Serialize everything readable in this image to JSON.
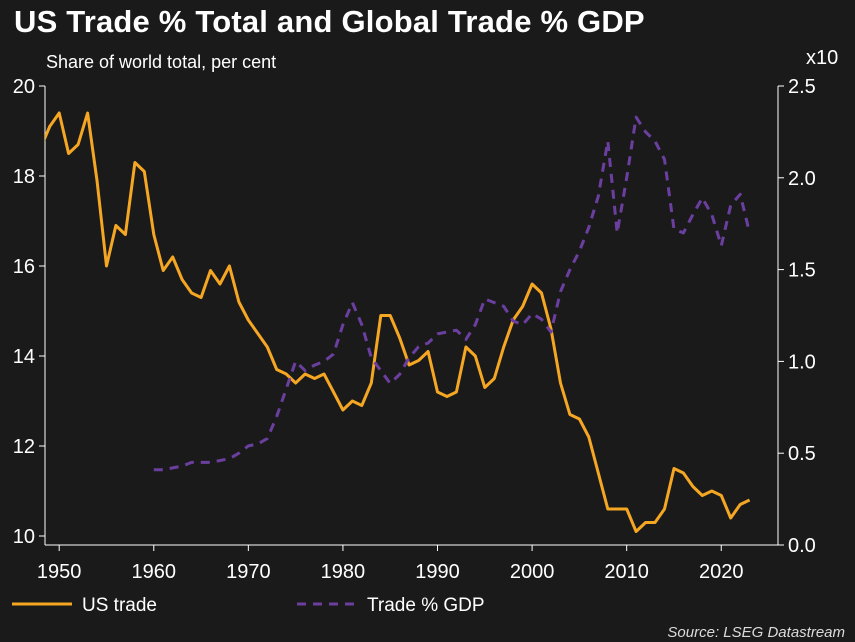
{
  "title": "US Trade % Total and Global Trade % GDP",
  "subtitle": "Share of world total, per cent",
  "right_axis_multiplier": "x10",
  "source": "Source: LSEG Datastream",
  "colors": {
    "background": "#1a1a1a",
    "us_trade": "#f5a623",
    "trade_gdp": "#6b3fa0",
    "text": "#ffffff"
  },
  "chart_data": {
    "type": "line",
    "title": "US Trade % Total and Global Trade % GDP",
    "subtitle": "Share of world total, per cent",
    "grid": false,
    "legend_position": "bottom",
    "x_ticks": [
      "1950",
      "1960",
      "1970",
      "1980",
      "1990",
      "2000",
      "2010",
      "2020"
    ],
    "xlim": [
      1948.5,
      2026
    ],
    "y_left": {
      "lim": [
        9.8,
        20
      ],
      "ticks": [
        "10",
        "12",
        "14",
        "16",
        "18",
        "20"
      ]
    },
    "y_right": {
      "lim": [
        0,
        2.5
      ],
      "ticks": [
        "0.0",
        "0.5",
        "1.0",
        "1.5",
        "2.0",
        "2.5"
      ],
      "multiplier": "x10"
    },
    "series": [
      {
        "name": "US trade",
        "axis": "left",
        "style": "solid",
        "x": [
          1948,
          1949,
          1950,
          1951,
          1952,
          1953,
          1954,
          1955,
          1956,
          1957,
          1958,
          1959,
          1960,
          1961,
          1962,
          1963,
          1964,
          1965,
          1966,
          1967,
          1968,
          1969,
          1970,
          1971,
          1972,
          1973,
          1974,
          1975,
          1976,
          1977,
          1978,
          1979,
          1980,
          1981,
          1982,
          1983,
          1984,
          1985,
          1986,
          1987,
          1988,
          1989,
          1990,
          1991,
          1992,
          1993,
          1994,
          1995,
          1996,
          1997,
          1998,
          1999,
          2000,
          2001,
          2002,
          2003,
          2004,
          2005,
          2006,
          2007,
          2008,
          2009,
          2010,
          2011,
          2012,
          2013,
          2014,
          2015,
          2016,
          2017,
          2018,
          2019,
          2020,
          2021,
          2022,
          2023
        ],
        "values": [
          18.6,
          19.1,
          19.4,
          18.5,
          18.7,
          19.4,
          17.9,
          16.0,
          16.9,
          16.7,
          18.3,
          18.1,
          16.7,
          15.9,
          16.2,
          15.7,
          15.4,
          15.3,
          15.9,
          15.6,
          16.0,
          15.2,
          14.8,
          14.5,
          14.2,
          13.7,
          13.6,
          13.4,
          13.6,
          13.5,
          13.6,
          13.2,
          12.8,
          13.0,
          12.9,
          13.4,
          14.9,
          14.9,
          14.4,
          13.8,
          13.9,
          14.1,
          13.2,
          13.1,
          13.2,
          14.2,
          14.0,
          13.3,
          13.5,
          14.2,
          14.8,
          15.1,
          15.6,
          15.4,
          14.6,
          13.4,
          12.7,
          12.6,
          12.2,
          11.4,
          10.6,
          10.6,
          10.6,
          10.1,
          10.3,
          10.3,
          10.6,
          11.5,
          11.4,
          11.1,
          10.9,
          11.0,
          10.9,
          10.4,
          10.7,
          10.8
        ]
      },
      {
        "name": "Trade % GDP",
        "axis": "right",
        "style": "dashed",
        "x": [
          1960,
          1961,
          1962,
          1963,
          1964,
          1965,
          1966,
          1967,
          1968,
          1969,
          1970,
          1971,
          1972,
          1973,
          1974,
          1975,
          1976,
          1977,
          1978,
          1979,
          1980,
          1981,
          1982,
          1983,
          1984,
          1985,
          1986,
          1987,
          1988,
          1989,
          1990,
          1991,
          1992,
          1993,
          1994,
          1995,
          1996,
          1997,
          1998,
          1999,
          2000,
          2001,
          2002,
          2003,
          2004,
          2005,
          2006,
          2007,
          2008,
          2009,
          2010,
          2011,
          2012,
          2013,
          2014,
          2015,
          2016,
          2017,
          2018,
          2019,
          2020,
          2021,
          2022,
          2023
        ],
        "values": [
          0.41,
          0.41,
          0.42,
          0.43,
          0.45,
          0.45,
          0.45,
          0.46,
          0.47,
          0.5,
          0.54,
          0.55,
          0.58,
          0.7,
          0.85,
          1.0,
          0.95,
          0.98,
          1.0,
          1.04,
          1.2,
          1.32,
          1.2,
          1.02,
          0.95,
          0.88,
          0.93,
          1.02,
          1.08,
          1.1,
          1.15,
          1.16,
          1.17,
          1.12,
          1.2,
          1.34,
          1.32,
          1.3,
          1.22,
          1.2,
          1.26,
          1.23,
          1.16,
          1.38,
          1.5,
          1.6,
          1.73,
          1.9,
          2.2,
          1.7,
          2.0,
          2.33,
          2.25,
          2.2,
          2.1,
          1.72,
          1.7,
          1.8,
          1.89,
          1.8,
          1.63,
          1.85,
          1.91,
          1.7
        ]
      }
    ]
  }
}
